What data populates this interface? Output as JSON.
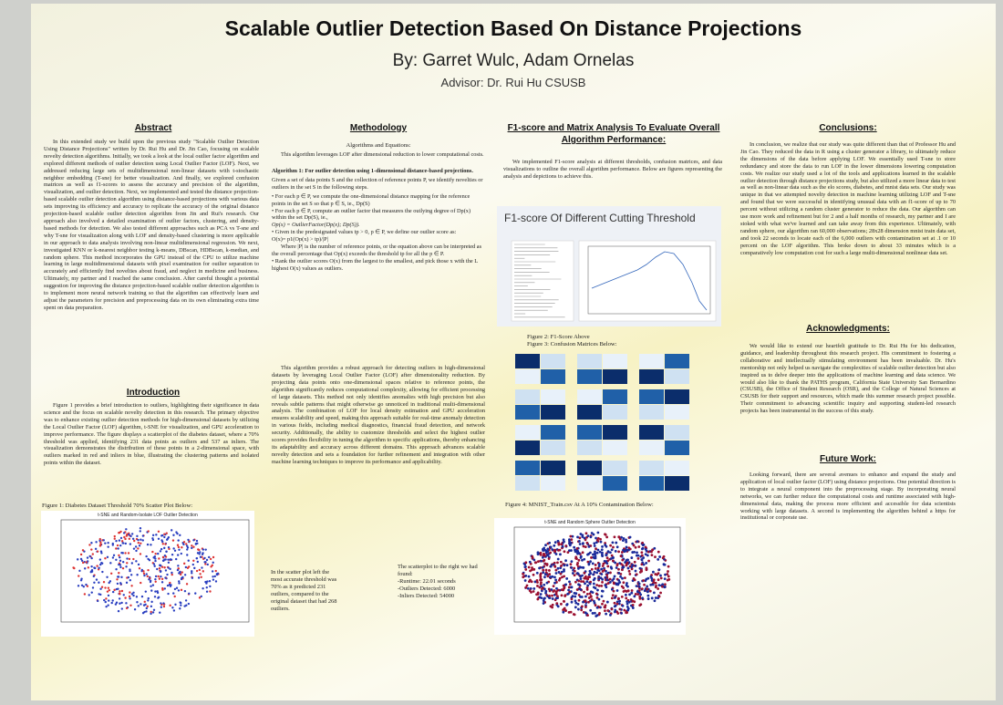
{
  "header": {
    "title": "Scalable Outlier Detection Based On Distance Projections",
    "authors": "By: Garret Wulc, Adam Ornelas",
    "advisor": "Advisor: Dr. Rui Hu CSUSB"
  },
  "abstract": {
    "heading": "Abstract",
    "text": "In this extended study we build upon the previous study \"Scalable Outlier Detection Using Distance Projections\" written by Dr. Rui Hu and Dr. Jin Cao, focusing on scalable novelty detection algorithms. Initially, we took a look at the local outlier factor algorithm and explored different methods of outlier detection using Local Outlier Factor (LOF). Next, we addressed reducing large sets of multidimensional non-linear datasets with t-stochastic neighbor embedding (T-sne) for better visualization. And finally, we explored confusion matrices as well as f1-scores to assess the accuracy and precision of the algorithm, visualization, and outlier detection. Next, we implemented and tested the distance projection-based scalable outlier detection algorithm using distance-based projections with various data sets improving its efficiency and accuracy to replicate the accuracy of the original distance projection-based scalable outlier detection algorithm from Jin and Rui's research. Our approach also involved a detailed examination of outlier factors, clustering, and density-based methods for detection. We also tested different approaches such as PCA vs T-sne and why T-sne for visualization along with LOF and density-based clustering is more applicable in our approach to data analysis involving non-linear multidimensional regression. We next, investigated KNN or k-nearest neighbor testing k-means, DBscan, HDBscan, k-median, and random sphere. This method incorporates the GPU instead of the CPU to utilize machine learning in large multidimensional datasets with pixel examination for outlier separation to accurately and efficiently find novelties about fraud, and neglect in medicine and business. Ultimately, my partner and I reached the same conclusion. After careful thought a potential suggestion for improving the distance projection-based scalable outlier detection algorithm is to implement more neural network training so that the algorithm can effectively learn and adjust the parameters for precision and preprocessing data on its own eliminating extra time spent on data preparation."
  },
  "introduction": {
    "heading": "Introduction",
    "text": "Figure 1 provides a brief introduction to outliers, highlighting their significance in data science and the focus on scalable novelty detection in this research. The primary objective was to enhance existing outlier detection methods for high-dimensional datasets by utilizing the Local Outlier Factor (LOF) algorithm, t-SNE for visualization, and GPU acceleration to improve performance. The figure displays a scatterplot of the diabetes dataset, where a 70% threshold was applied, identifying 231 data points as outliers and 537 as inliers. The visualization demonstrates the distribution of these points in a 2-dimensional space, with outliers marked in red and inliers in blue, illustrating the clustering patterns and isolated points within the dataset.",
    "figure_caption": "Figure 1: Diabetes Dataset Threshold 70% Scatter Plot Below:",
    "figure_title": "t-SNE and Random-Isolate LOF Outlier Detection"
  },
  "methodology": {
    "heading": "Methodology",
    "subheading": "Algorithms and Equations:",
    "intro": "This algorithm leverages LOF after dimensional reduction to lower computational costs.",
    "algorithm": [
      "Algorithm 1: For outlier detection using 1-dimensional distance-based projections.",
      "Given a set of data points S and the collection of reference points P, we identify novelties or outliers in the set S in the following steps.",
      "• For each p ∈ P, we compute the one-dimensional distance mapping for the reference points in the set S so that p ∈ S, ie., Dp(S)",
      "• For each p ∈ P, compute an outlier factor that measures the outlying degree of Dp(x) within the set Dp(S), ie.,",
      "Op(x) = OutlierFactor(Dp(x); Dp(S)).",
      "• Given in the predesignated values tp > 0, p ∈ P, we define our outlier score as:",
      "O(x)= p1(Op(x) > tp)/|P|",
      "Where |P| is the number of reference points, or the equation above can be interpreted as the overall percentage that Op(x) exceeds the threshold tp for all the p ∈ P.",
      "• Rank the outlier scores O(x) from the largest to the smallest, and pick those x with the L highest O(x) values as outliers."
    ],
    "text": "This algorithm provides a robust approach for detecting outliers in high-dimensional datasets by leveraging Local Outlier Factor (LOF) after dimensionality reduction. By projecting data points onto one-dimensional spaces relative to reference points, the algorithm significantly reduces computational complexity, allowing for efficient processing of large datasets. This method not only identifies anomalies with high precision but also reveals subtle patterns that might otherwise go unnoticed in traditional multi-dimensional analysis. The combination of LOF for local density estimation and GPU acceleration ensures scalability and speed, making this approach suitable for real-time anomaly detection in various fields, including medical diagnostics, financial fraud detection, and network security. Additionally, the ability to customize thresholds and select the highest outlier scores provides flexibility in tuning the algorithm to specific applications, thereby enhancing its adaptability and accuracy across different domains. This approach advances scalable novelty detection and sets a foundation for further refinement and integration with other machine learning techniques to improve its performance and applicability.",
    "note_left": "In the scatter plot left the most accurate threshold was 70% as it predicted 231 outliers, compared to the original dataset that had 268 outliers.",
    "note_right": [
      "The scatterplot to the right we had found:",
      "-Runtime: 22.01 seconds",
      "-Outliers Detected: 6000",
      "-Inliers Detected: 54000"
    ]
  },
  "analysis": {
    "heading": "F1-score and Matrix Analysis To Evaluate Overall Algorithm Performance:",
    "text": "We implemented F1-score analysis at different thresholds, confusion matrices, and data visualizations to outline the overall algorithm performance. Below are figures representing the analysis and depictions to achieve this.",
    "figure2_title": "F1-score Of Different Cutting Threshold",
    "figure2_caption": "Figure 2: F1-Score Above",
    "figure3_caption": "Figure 3: Confusion Matrices Below:",
    "figure4_caption": "Figure 4: MNIST_Train.csv At A 10% Contamination Below:",
    "figure4_title": "t-SNE and Random Sphere Outlier Detection"
  },
  "conclusions": {
    "heading": "Conclusions:",
    "text": "In conclusion, we realize that our study was quite different than that of Professor Hu and Jin Cao. They reduced the data in R using a cluster generator a library, to ultimately reduce the dimensions of the data before applying LOF. We essentially used T-sne to store redundancy and store the data to run LOF in the lower dimensions lowering computation costs. We realize our study used a lot of the tools and applications learned in the scalable outlier detection through distance projections study, but also utilized a more linear data to test as well as non-linear data such as the elo scores, diabetes, and mnist data sets. Our study was unique in that we attempted novelty detection in machine learning utilizing LOF and T-sne and found that we were successful in identifying unusual data with an f1-score of up to 70 percent without utilizing a random cluster generator to reduce the data. Our algorithm can use more work and refinement but for 2 and a half months of research, my partner and I are stoked with what we've learned and can take away from this experience. Ultimately, with random sphere, our algorithm ran 60,000 observations; 28x28 dimension mnist train data set, and took 22 seconds to locate each of the 6,000 outliers with contamination set at .1 or 10 percent on the LOF algorithm. This broke down to about 33 minutes which is a comparatively low computation cost for such a large multi-dimensional nonlinear data set."
  },
  "acknowledgments": {
    "heading": "Acknowledgments:",
    "text": "We would like to extend our heartfelt gratitude to Dr. Rui Hu for his dedication, guidance, and leadership throughout this research project. His commitment to fostering a collaborative and intellectually stimulating environment has been invaluable. Dr. Hu's mentorship not only helped us navigate the complexities of scalable outlier detection but also inspired us to delve deeper into the applications of machine learning and data science. We would also like to thank the PATHS program, California State University San Bernardino (CSUSB), the Office of Student Research (OSR), and the College of Natural Sciences at CSUSB for their support and resources, which made this summer research project possible. Their commitment to advancing scientific inquiry and supporting student-led research projects has been instrumental in the success of this study."
  },
  "future_work": {
    "heading": "Future Work:",
    "text": "Looking forward, there are several avenues to enhance and expand the study and application of local outlier factor (LOF) using distance projections. One potential direction is to integrate a neural component into the preprocessing stage. By incorporating neural networks, we can further reduce the computational costs and runtime associated with high-dimensional data, making the process more efficient and accessible for data scientists working with large datasets. A second is implementing the algorithm behind a https for institutional or corporate use."
  }
}
